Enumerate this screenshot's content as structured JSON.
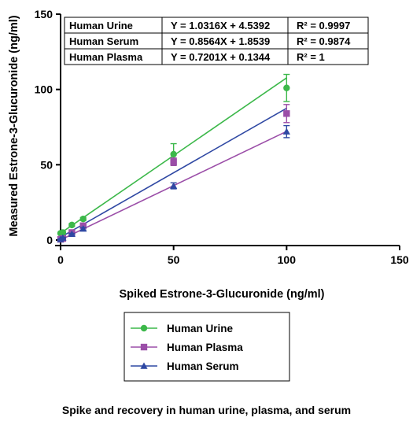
{
  "chart_data": {
    "type": "scatter",
    "xlabel": "Spiked Estrone-3-Glucuronide (ng/ml)",
    "ylabel": "Measured Estrone-3-Glucuronide (ng/ml)",
    "xlim": [
      0,
      150
    ],
    "ylim": [
      0,
      150
    ],
    "xticks": [
      0,
      50,
      100,
      150
    ],
    "yticks": [
      0,
      50,
      100,
      150
    ],
    "grid": false,
    "legend_position": "bottom",
    "series": [
      {
        "name": "Human Urine",
        "color": "#3cb84a",
        "marker": "circle",
        "points": [
          {
            "x": 0,
            "y": 4.5,
            "err": 0.5
          },
          {
            "x": 1,
            "y": 5.0,
            "err": 0.5
          },
          {
            "x": 5,
            "y": 10.0,
            "err": 1.0
          },
          {
            "x": 10,
            "y": 14.0,
            "err": 1.0
          },
          {
            "x": 50,
            "y": 57.0,
            "err": 7.0
          },
          {
            "x": 100,
            "y": 101.0,
            "err": 9.0
          }
        ],
        "fit": {
          "slope": 1.0316,
          "intercept": 4.5392
        }
      },
      {
        "name": "Human Plasma",
        "color": "#9b4ea8",
        "marker": "square",
        "points": [
          {
            "x": 0,
            "y": 0.5,
            "err": 0.3
          },
          {
            "x": 1,
            "y": 1.0,
            "err": 0.3
          },
          {
            "x": 5,
            "y": 5.0,
            "err": 0.5
          },
          {
            "x": 10,
            "y": 9.5,
            "err": 0.8
          },
          {
            "x": 50,
            "y": 52.0,
            "err": 2.5
          },
          {
            "x": 100,
            "y": 84.0,
            "err": 6.0
          }
        ],
        "fit": {
          "slope": 0.7201,
          "intercept": 0.1344
        }
      },
      {
        "name": "Human Serum",
        "color": "#2f48a3",
        "marker": "triangle",
        "points": [
          {
            "x": 0,
            "y": 0.5,
            "err": 0.3
          },
          {
            "x": 1,
            "y": 1.5,
            "err": 0.3
          },
          {
            "x": 5,
            "y": 4.0,
            "err": 0.5
          },
          {
            "x": 10,
            "y": 7.5,
            "err": 0.8
          },
          {
            "x": 50,
            "y": 36.0,
            "err": 2.0
          },
          {
            "x": 100,
            "y": 72.0,
            "err": 4.0
          }
        ],
        "fit": {
          "slope": 0.8564,
          "intercept": 1.8539
        }
      }
    ],
    "equation_table": [
      {
        "matrix": "Human Urine",
        "equation": "Y = 1.0316X + 4.5392",
        "r2": "R² = 0.9997"
      },
      {
        "matrix": "Human Serum",
        "equation": "Y = 0.8564X + 1.8539",
        "r2": "R² = 0.9874"
      },
      {
        "matrix": "Human Plasma",
        "equation": "Y = 0.7201X + 0.1344",
        "r2": "R² = 1"
      }
    ]
  },
  "caption": "Spike and recovery in human urine, plasma, and serum"
}
